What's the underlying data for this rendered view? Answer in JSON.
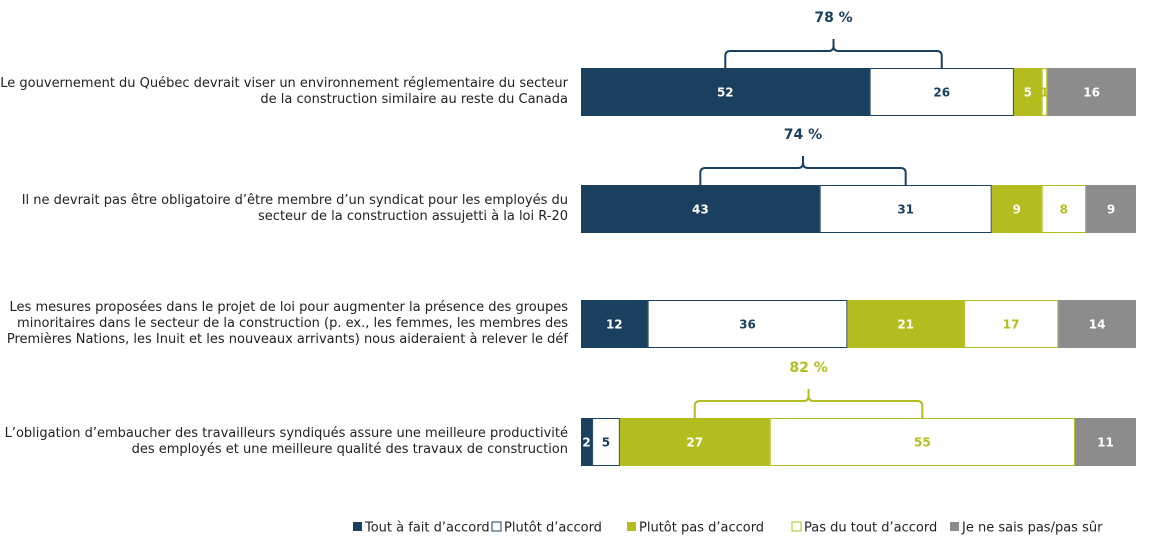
{
  "chart_data": {
    "type": "stacked_bar_horizontal",
    "categories": [
      "Le gouvernement du Québec devrait viser un environnement réglementaire du secteur de la construction similaire au reste du Canada",
      "Il ne devrait pas être obligatoire d’être membre d’un syndicat pour les employés du secteur de la construction assujetti à la loi R-20",
      "Les mesures proposées dans le projet de loi pour augmenter la présence des groupes minoritaires dans le secteur de la construction (p. ex., les femmes, les membres des Premières Nations, les Inuit et les nouveaux arrivants) nous aideraient à relever le déf",
      "L’obligation d’embaucher des travailleurs syndiqués assure une meilleure productivité des employés et une meilleure qualité des travaux de construction"
    ],
    "series": [
      {
        "name": "Tout à fait d’accord",
        "color": "#1b3f5e",
        "hollow": false,
        "values": [
          52,
          43,
          12,
          2
        ]
      },
      {
        "name": "Plutôt d’accord",
        "color": "#1b3f5e",
        "hollow": true,
        "values": [
          26,
          31,
          36,
          5
        ]
      },
      {
        "name": "Plutôt pas d’accord",
        "color": "#b4bd1f",
        "hollow": false,
        "values": [
          5,
          9,
          21,
          27
        ]
      },
      {
        "name": "Pas du tout d’accord",
        "color": "#b4bd1f",
        "hollow": true,
        "values": [
          1,
          8,
          17,
          55
        ]
      },
      {
        "name": "Je ne sais pas/pas sûr",
        "color": "#8c8c8c",
        "hollow": false,
        "values": [
          16,
          9,
          14,
          11
        ]
      }
    ],
    "xlim": [
      0,
      100
    ],
    "annotations": [
      {
        "label": "78 %",
        "value": 78,
        "category": 0,
        "series": [
          0,
          1
        ]
      },
      {
        "label": "74 %",
        "value": 74,
        "category": 1,
        "series": [
          0,
          1
        ]
      },
      {
        "label": "82 %",
        "value": 82,
        "category": 3,
        "series": [
          2,
          3
        ]
      }
    ],
    "legend": "bottom"
  }
}
